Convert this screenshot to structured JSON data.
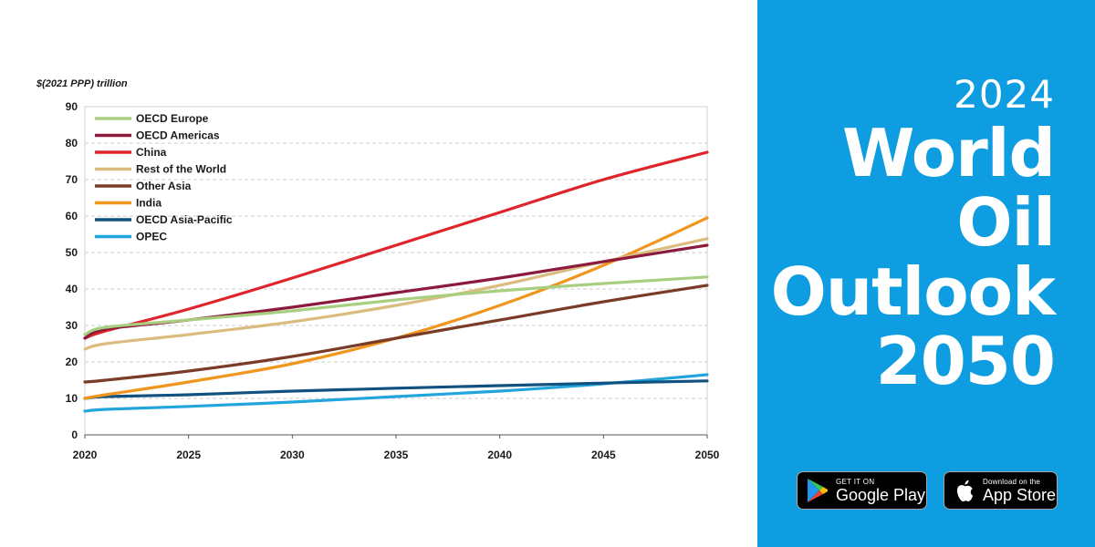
{
  "chart_data": {
    "type": "line",
    "unit_label": "$(2021 PPP) trillion",
    "x_ticks": [
      2020,
      2025,
      2030,
      2035,
      2040,
      2045,
      2050
    ],
    "y_ticks": [
      0,
      10,
      20,
      30,
      40,
      50,
      60,
      70,
      80,
      90
    ],
    "xlim": [
      2020,
      2050
    ],
    "ylim": [
      0,
      90
    ],
    "grid": "horizontal-dashed",
    "legend_position": "top-left",
    "series": [
      {
        "name": "OECD Europe",
        "color": "#a8cf7f",
        "x": [
          2020,
          2021,
          2025,
          2030,
          2035,
          2040,
          2045,
          2050
        ],
        "y": [
          27.5,
          29.5,
          31.5,
          34.0,
          37.0,
          39.5,
          41.5,
          43.3
        ]
      },
      {
        "name": "OECD Americas",
        "color": "#8c1a3c",
        "x": [
          2020,
          2021,
          2025,
          2030,
          2035,
          2040,
          2045,
          2050
        ],
        "y": [
          26.5,
          29.0,
          31.5,
          35.0,
          39.0,
          43.0,
          47.5,
          52.0
        ]
      },
      {
        "name": "China",
        "color": "#e0242b",
        "x": [
          2020,
          2021,
          2025,
          2030,
          2035,
          2040,
          2045,
          2050
        ],
        "y": [
          26.5,
          28.5,
          34.5,
          43.0,
          52.0,
          61.0,
          70.0,
          77.5
        ]
      },
      {
        "name": "Rest of the World",
        "color": "#dcbc7e",
        "x": [
          2020,
          2021,
          2025,
          2030,
          2035,
          2040,
          2045,
          2050
        ],
        "y": [
          23.5,
          25.0,
          27.5,
          31.0,
          35.5,
          41.0,
          47.5,
          53.8
        ]
      },
      {
        "name": "Other Asia",
        "color": "#7a3c26",
        "x": [
          2020,
          2021,
          2025,
          2030,
          2035,
          2040,
          2045,
          2050
        ],
        "y": [
          14.5,
          15.0,
          17.5,
          21.5,
          26.5,
          31.5,
          36.5,
          41.0
        ]
      },
      {
        "name": "India",
        "color": "#f0951d",
        "x": [
          2020,
          2021,
          2025,
          2030,
          2035,
          2040,
          2045,
          2050
        ],
        "y": [
          10.0,
          11.0,
          14.5,
          19.5,
          26.5,
          35.5,
          46.5,
          59.5
        ]
      },
      {
        "name": "OECD Asia-Pacific",
        "color": "#11517f",
        "x": [
          2020,
          2021,
          2025,
          2030,
          2035,
          2040,
          2045,
          2050
        ],
        "y": [
          10.0,
          10.5,
          11.0,
          12.0,
          12.8,
          13.5,
          14.2,
          14.8
        ]
      },
      {
        "name": "OPEC",
        "color": "#22a4dd",
        "x": [
          2020,
          2021,
          2025,
          2030,
          2035,
          2040,
          2045,
          2050
        ],
        "y": [
          6.5,
          7.0,
          7.8,
          9.0,
          10.5,
          12.0,
          14.0,
          16.5
        ]
      }
    ]
  },
  "promo": {
    "year": "2024",
    "title_line1": "World",
    "title_line2": "Oil",
    "title_line3": "Outlook",
    "title_line4": "2050",
    "background_color": "#0d9de0"
  },
  "badges": {
    "google_play": {
      "small": "GET IT ON",
      "big": "Google Play",
      "icon": "google-play-icon"
    },
    "app_store": {
      "small": "Download on the",
      "big": "App Store",
      "icon": "apple-icon"
    }
  }
}
